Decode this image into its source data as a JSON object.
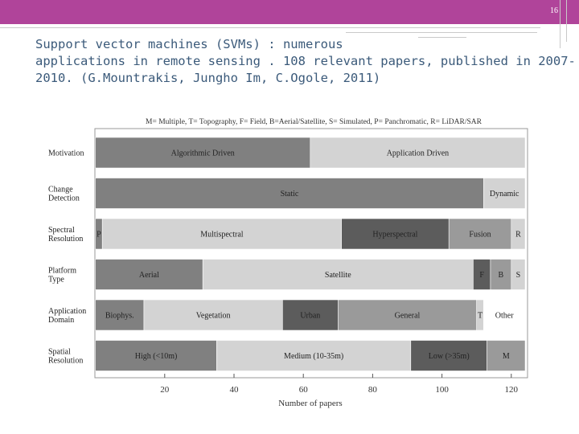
{
  "slide": {
    "page_number": "16",
    "title_lines": [
      "Support vector machines (SVMs) : numerous",
      "applications in remote sensing . 108 relevant papers, published in 2007-",
      "2010. (G.Mountrakis, Jungho Im, C.Ogole, 2011)"
    ],
    "colors": {
      "header_bar": "#b0449a",
      "title_text": "#3b5a7a"
    }
  },
  "chart_data": {
    "type": "bar",
    "orientation": "horizontal-stacked",
    "legend_text": "M= Multiple, T= Topography, F= Field, B=Aerial/Satellite, S= Simulated, P= Panchromatic, R= LiDAR/SAR",
    "xlabel": "Number of papers",
    "ylabel": "",
    "xlim": [
      0,
      124
    ],
    "xticks": [
      20,
      40,
      60,
      80,
      100,
      120
    ],
    "categories": [
      "Motivation",
      "Change Detection",
      "Spectral Resolution",
      "Platform Type",
      "Application Domain",
      "Spatial Resolution"
    ],
    "rows": [
      {
        "category": "Motivation",
        "segments": [
          {
            "label": "Algorithmic Driven",
            "value": 62,
            "color": "#808080",
            "text_color": "#222222"
          },
          {
            "label": "Application Driven",
            "value": 62,
            "color": "#d3d3d3",
            "text_color": "#222222"
          }
        ]
      },
      {
        "category": "Change Detection",
        "segments": [
          {
            "label": "Static",
            "value": 112,
            "color": "#808080",
            "text_color": "#222222"
          },
          {
            "label": "Dynamic",
            "value": 12,
            "color": "#d3d3d3",
            "text_color": "#222222"
          }
        ]
      },
      {
        "category": "Spectral Resolution",
        "segments": [
          {
            "label": "P",
            "value": 2,
            "color": "#808080",
            "text_color": "#222222"
          },
          {
            "label": "Multispectral",
            "value": 69,
            "color": "#d3d3d3",
            "text_color": "#222222"
          },
          {
            "label": "Hyperspectral",
            "value": 31,
            "color": "#5c5c5c",
            "text_color": "#222222"
          },
          {
            "label": "Fusion",
            "value": 18,
            "color": "#9a9a9a",
            "text_color": "#222222"
          },
          {
            "label": "R",
            "value": 4,
            "color": "#d3d3d3",
            "text_color": "#222222"
          }
        ]
      },
      {
        "category": "Platform Type",
        "segments": [
          {
            "label": "Aerial",
            "value": 31,
            "color": "#808080",
            "text_color": "#222222"
          },
          {
            "label": "Satellite",
            "value": 78,
            "color": "#d3d3d3",
            "text_color": "#222222"
          },
          {
            "label": "F",
            "value": 5,
            "color": "#5c5c5c",
            "text_color": "#222222"
          },
          {
            "label": "B",
            "value": 6,
            "color": "#9a9a9a",
            "text_color": "#222222"
          },
          {
            "label": "S",
            "value": 4,
            "color": "#d3d3d3",
            "text_color": "#222222"
          }
        ]
      },
      {
        "category": "Application Domain",
        "segments": [
          {
            "label": "Biophys.",
            "value": 14,
            "color": "#808080",
            "text_color": "#222222"
          },
          {
            "label": "Vegetation",
            "value": 40,
            "color": "#d3d3d3",
            "text_color": "#222222"
          },
          {
            "label": "Urban",
            "value": 16,
            "color": "#5c5c5c",
            "text_color": "#222222"
          },
          {
            "label": "General",
            "value": 40,
            "color": "#9a9a9a",
            "text_color": "#222222"
          },
          {
            "label": "T",
            "value": 2,
            "color": "#d3d3d3",
            "text_color": "#222222"
          },
          {
            "label": "Other",
            "value": 12,
            "color": "#ffffff",
            "text_color": "#222222"
          }
        ]
      },
      {
        "category": "Spatial Resolution",
        "segments": [
          {
            "label": "High (<10m)",
            "value": 35,
            "color": "#808080",
            "text_color": "#222222"
          },
          {
            "label": "Medium (10-35m)",
            "value": 56,
            "color": "#d3d3d3",
            "text_color": "#222222"
          },
          {
            "label": "Low (>35m)",
            "value": 22,
            "color": "#5c5c5c",
            "text_color": "#222222"
          },
          {
            "label": "M",
            "value": 11,
            "color": "#9a9a9a",
            "text_color": "#222222"
          }
        ]
      }
    ],
    "grid": false,
    "legend_placement": "top"
  }
}
